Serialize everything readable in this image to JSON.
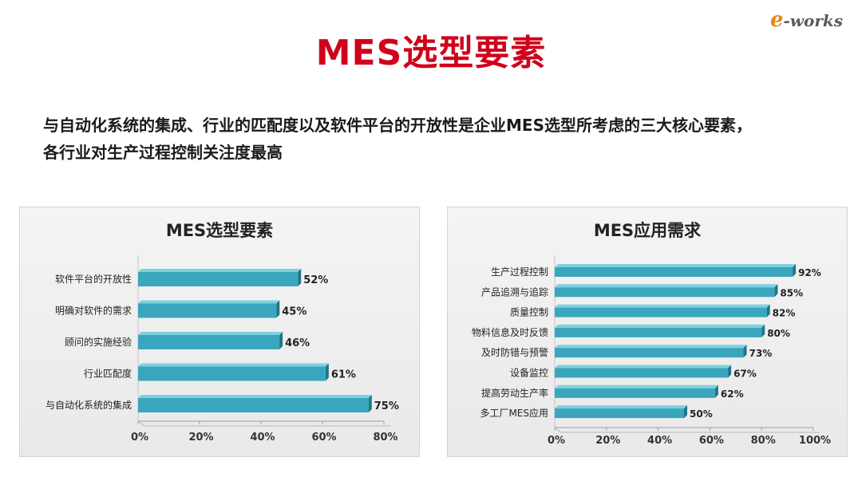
{
  "brand": {
    "logo_text": "-works",
    "logo_mark": "e"
  },
  "page_title": "MES选型要素",
  "description": [
    "与自动化系统的集成、行业的匹配度以及软件平台的开放性是企业MES选型所考虑的三大核心要素，",
    "各行业对生产过程控制关注度最高"
  ],
  "colors": {
    "title": "#d0021b",
    "bar": "#3aa6bd",
    "bar_dark": "#1f7487",
    "bar_top": "#7fd0df"
  },
  "chart_data": [
    {
      "type": "bar",
      "orientation": "horizontal",
      "title": "MES选型要素",
      "categories": [
        "软件平台的开放性",
        "明确对软件的需求",
        "顾问的实施经验",
        "行业匹配度",
        "与自动化系统的集成"
      ],
      "values": [
        52,
        45,
        46,
        61,
        75
      ],
      "data_labels": [
        "52%",
        "45%",
        "46%",
        "61%",
        "75%"
      ],
      "xlim": [
        0,
        80
      ],
      "xticks": [
        "0%",
        "20%",
        "40%",
        "60%",
        "80%"
      ],
      "tick_values": [
        0,
        20,
        40,
        60,
        80
      ],
      "grid": false
    },
    {
      "type": "bar",
      "orientation": "horizontal",
      "title": "MES应用需求",
      "categories": [
        "生产过程控制",
        "产品追溯与追踪",
        "质量控制",
        "物料信息及时反馈",
        "及时防错与预警",
        "设备监控",
        "提高劳动生产率",
        "多工厂MES应用"
      ],
      "values": [
        92,
        85,
        82,
        80,
        73,
        67,
        62,
        50
      ],
      "data_labels": [
        "92%",
        "85%",
        "82%",
        "80%",
        "73%",
        "67%",
        "62%",
        "50%"
      ],
      "xlim": [
        0,
        100
      ],
      "xticks": [
        "0%",
        "20%",
        "40%",
        "60%",
        "80%",
        "100%"
      ],
      "tick_values": [
        0,
        20,
        40,
        60,
        80,
        100
      ],
      "grid": false
    }
  ]
}
